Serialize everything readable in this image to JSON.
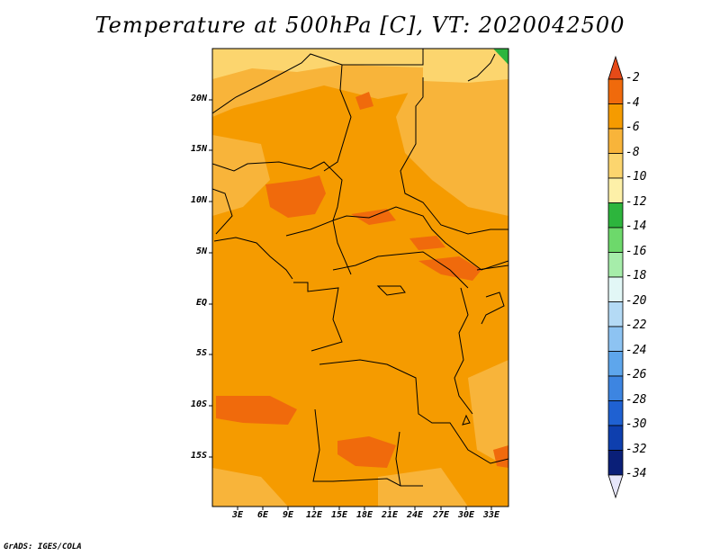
{
  "title": "Temperature at 500hPa [C], VT: 2020042500",
  "credit": "GrADS: IGES/COLA",
  "map": {
    "lat_labels": [
      "20N",
      "15N",
      "10N",
      "5N",
      "EQ",
      "5S",
      "10S",
      "15S"
    ],
    "lon_labels": [
      "3E",
      "6E",
      "9E",
      "12E",
      "15E",
      "18E",
      "21E",
      "24E",
      "27E",
      "30E",
      "33E"
    ]
  },
  "colorbar": {
    "labels": [
      "-2",
      "-4",
      "-6",
      "-8",
      "-10",
      "-12",
      "-14",
      "-16",
      "-18",
      "-20",
      "-22",
      "-24",
      "-26",
      "-28",
      "-30",
      "-32",
      "-34"
    ],
    "colors": [
      "#e64a18",
      "#f06a0c",
      "#f59b00",
      "#f8b43a",
      "#fcd56e",
      "#fdf0a8",
      "#2db53d",
      "#6dd96b",
      "#a6edaa",
      "#e2f7f6",
      "#b4daf5",
      "#8dc3f2",
      "#5ea6ec",
      "#3d85e1",
      "#1f61d2",
      "#0e3fae",
      "#0a1f78",
      "#e6e6fa"
    ]
  }
}
